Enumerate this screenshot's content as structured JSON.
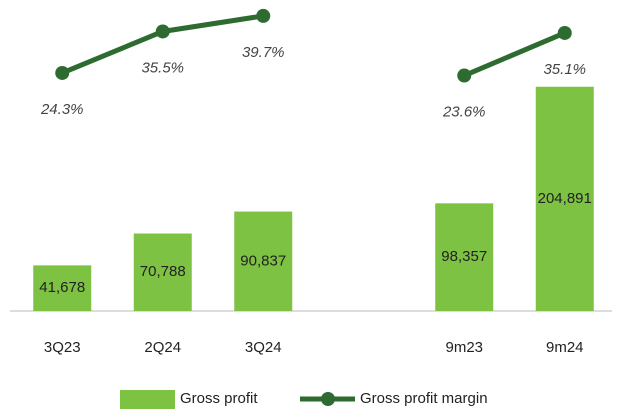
{
  "chart_data": {
    "type": "bar",
    "categories": [
      "3Q23",
      "2Q24",
      "3Q24",
      null,
      "9m23",
      "9m24"
    ],
    "ylim": [
      0,
      275000
    ],
    "y2lim": [
      -40,
      41.3
    ],
    "legend": "bottom",
    "series": [
      {
        "name": "Gross profit",
        "type": "bar",
        "color": "#7dc242",
        "values": [
          41678,
          70788,
          90837,
          null,
          98357,
          204891
        ],
        "value_labels": [
          "41,678",
          "70,788",
          "90,837",
          null,
          "98,357",
          "204,891"
        ]
      },
      {
        "name": "Gross profit margin",
        "type": "line",
        "axis": "y2",
        "color": "#2e6b30",
        "values": [
          24.3,
          35.5,
          39.7,
          null,
          23.6,
          35.1
        ],
        "value_labels": [
          "24.3%",
          "35.5%",
          "39.7%",
          null,
          "23.6%",
          "35.1%"
        ]
      }
    ]
  }
}
